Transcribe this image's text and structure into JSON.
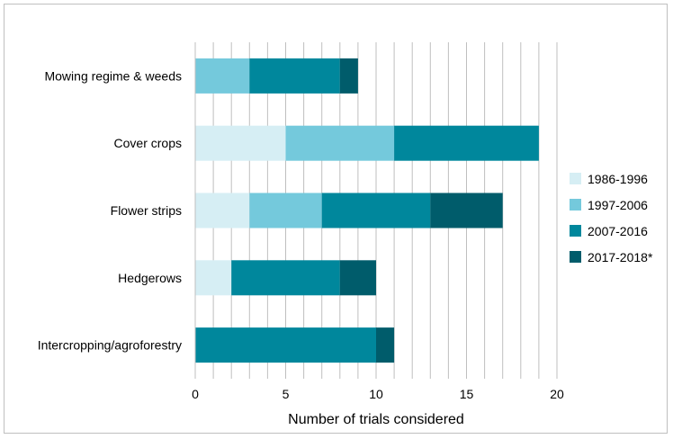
{
  "chart_data": {
    "type": "bar",
    "orientation": "horizontal",
    "stacked": true,
    "categories": [
      "Mowing regime & weeds",
      "Cover crops",
      "Flower strips",
      "Hedgerows",
      "Intercropping/agroforestry"
    ],
    "series": [
      {
        "name": "1986-1996",
        "color": "#d6eef4",
        "values": [
          0,
          5,
          3,
          2,
          0
        ]
      },
      {
        "name": "1997-2006",
        "color": "#74c9dc",
        "values": [
          3,
          6,
          4,
          0,
          0
        ]
      },
      {
        "name": "2007-2016",
        "color": "#00879c",
        "values": [
          5,
          8,
          6,
          6,
          10
        ]
      },
      {
        "name": "2017-2018*",
        "color": "#005c6b",
        "values": [
          1,
          0,
          4,
          2,
          1
        ]
      }
    ],
    "xlabel": "Number of trials considered",
    "xlim": [
      0,
      20
    ],
    "xticks": [
      "0",
      "5",
      "10",
      "15",
      "20"
    ],
    "grid": "vertical, every 1",
    "legend_position": "right"
  }
}
